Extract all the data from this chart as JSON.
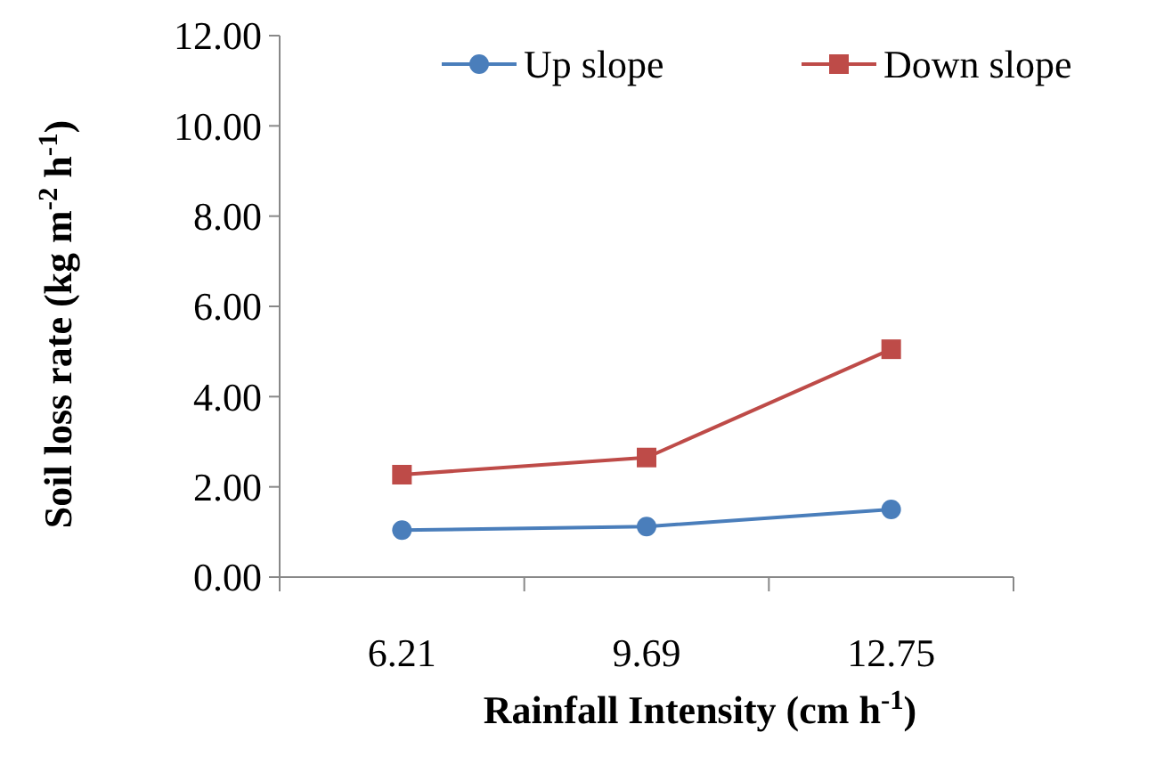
{
  "chart_data": {
    "type": "line",
    "xlabel": "Rainfall Intensity (cm h$^{-1}$)",
    "ylabel": "Soil loss rate  (kg m$^{-2}$ h$^{-1}$)",
    "categories": [
      "6.21",
      "9.69",
      "12.75"
    ],
    "series": [
      {
        "name": "Up slope",
        "color": "#4a7ebb",
        "marker": "circle",
        "values": [
          1.04,
          1.12,
          1.5
        ]
      },
      {
        "name": "Down slope",
        "color": "#be4b48",
        "marker": "square",
        "values": [
          2.27,
          2.65,
          5.05
        ]
      }
    ],
    "ylim": [
      0,
      12
    ],
    "yticks": [
      {
        "value": 0,
        "label": "0.00"
      },
      {
        "value": 2,
        "label": "2.00"
      },
      {
        "value": 4,
        "label": "4.00"
      },
      {
        "value": 6,
        "label": "6.00"
      },
      {
        "value": 8,
        "label": "8.00"
      },
      {
        "value": 10,
        "label": "10.00"
      },
      {
        "value": 12,
        "label": "12.00"
      }
    ],
    "grid": false,
    "legend": "top right"
  }
}
